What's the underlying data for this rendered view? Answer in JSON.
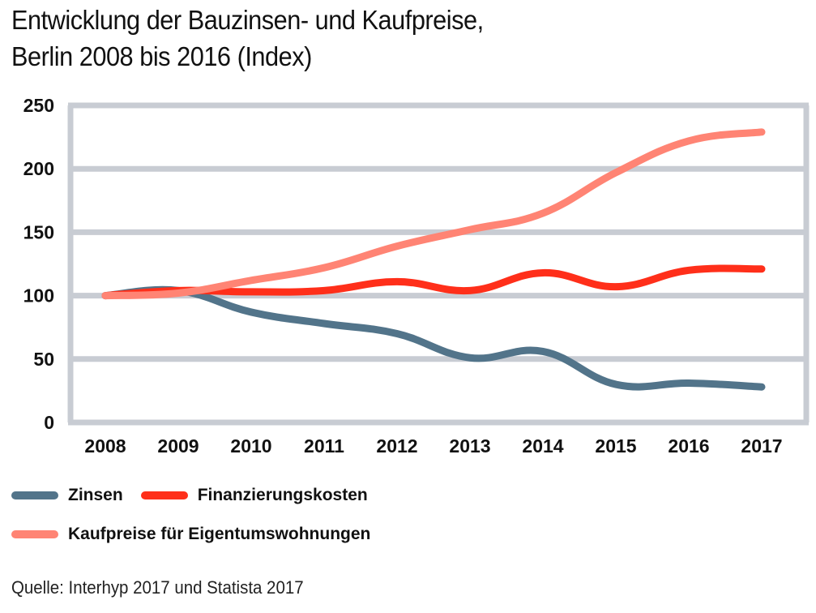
{
  "title": {
    "line1": "Entwicklung der Bauzinsen- und Kaufpreise,",
    "line2": "Berlin 2008 bis 2016 (Index)"
  },
  "source": "Quelle: Interhyp 2017 und Statista 2017",
  "chart_data": {
    "type": "line",
    "title": "Entwicklung der Bauzinsen- und Kaufpreise, Berlin 2008 bis 2016 (Index)",
    "xlabel": "",
    "ylabel": "",
    "x": [
      "2008",
      "2009",
      "2010",
      "2011",
      "2012",
      "2013",
      "2014",
      "2015",
      "2016",
      "2017"
    ],
    "ylim": [
      0,
      250
    ],
    "yticks": [
      "0",
      "50",
      "100",
      "150",
      "200",
      "250"
    ],
    "grid": true,
    "legend_position": "bottom-left",
    "series": [
      {
        "name": "Zinsen",
        "color": "#52748a",
        "values": [
          100,
          104,
          87,
          78,
          70,
          51,
          56,
          30,
          31,
          28
        ]
      },
      {
        "name": "Finanzierungskosten",
        "color": "#ff2f1a",
        "values": [
          100,
          104,
          103,
          104,
          111,
          104,
          118,
          107,
          120,
          121
        ]
      },
      {
        "name": "Kaufpreise für Eigentumswohnungen",
        "color": "#ff8474",
        "values": [
          100,
          102,
          112,
          122,
          139,
          152,
          165,
          197,
          222,
          229
        ]
      }
    ]
  }
}
